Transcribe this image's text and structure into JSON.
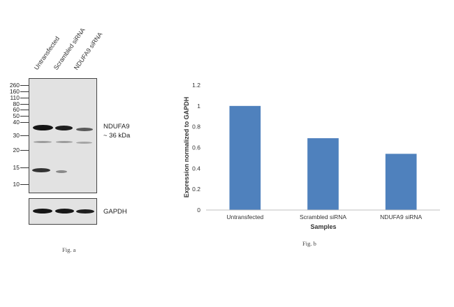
{
  "blot": {
    "lanes": [
      "Untransfected",
      "Scrambled siRNA",
      "NDUFA9 siRNA"
    ],
    "markers": [
      "260",
      "160",
      "110",
      "80",
      "60",
      "50",
      "40",
      "30",
      "20",
      "15",
      "10"
    ],
    "target_label": "NDUFA9",
    "target_size": "~ 36 kDa",
    "control_label": "GAPDH",
    "caption": "Fig. a"
  },
  "chart_data": {
    "type": "bar",
    "categories": [
      "Untransfected",
      "Scrambled siRNA",
      "NDUFA9 siRNA"
    ],
    "values": [
      1.0,
      0.69,
      0.54
    ],
    "title": "",
    "xlabel": "Samples",
    "ylabel": "Expression normalized to GAPDH",
    "ylim": [
      0,
      1.2
    ],
    "yticks": [
      "0",
      "0.2",
      "0.4",
      "0.6",
      "0.8",
      "1",
      "1.2"
    ],
    "grid": false,
    "legend": "none",
    "bar_color": "#4f81bd",
    "caption": "Fig. b"
  }
}
